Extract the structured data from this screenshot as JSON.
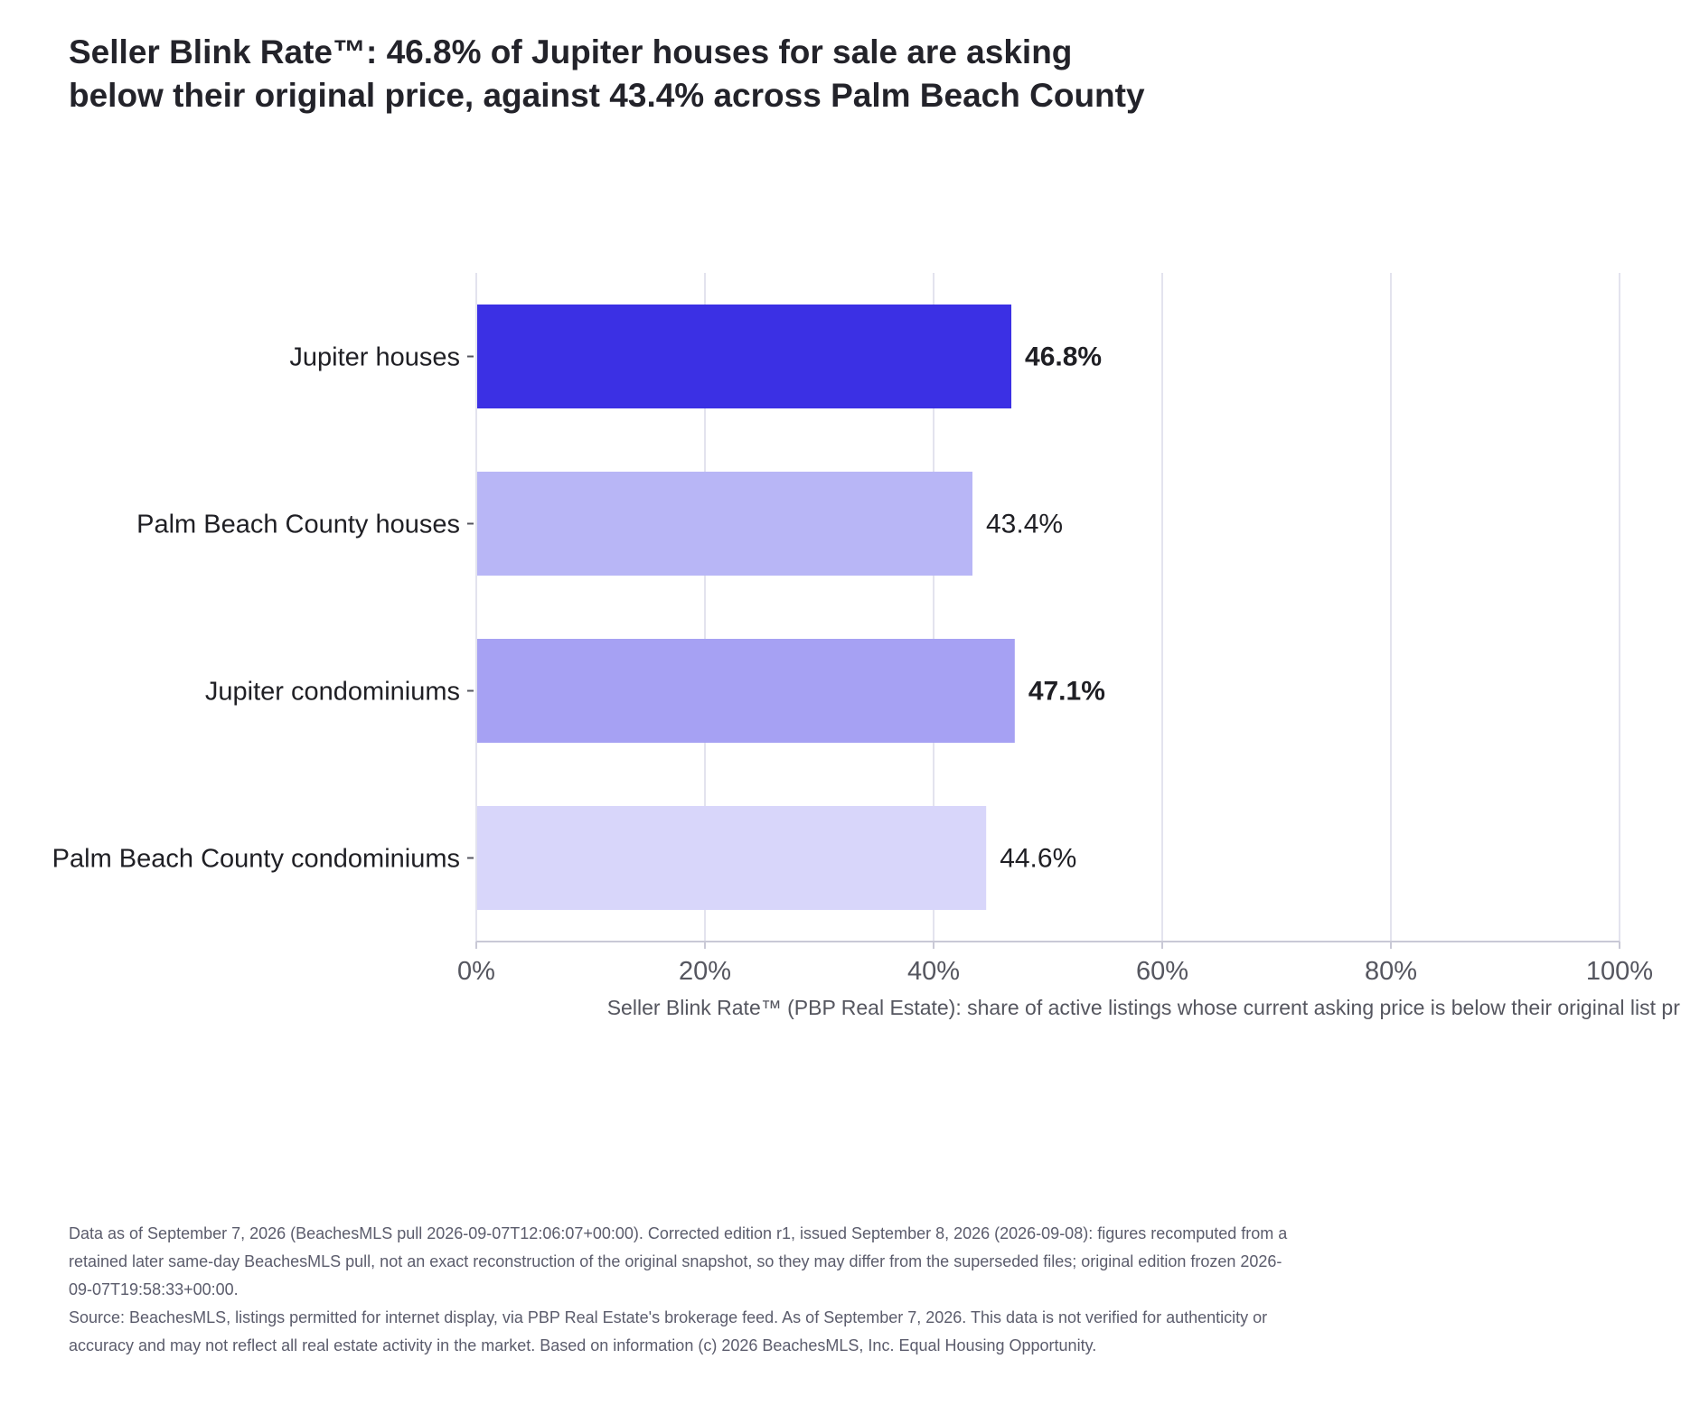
{
  "title_lines": [
    "Seller Blink Rate™: 46.8% of Jupiter houses for sale are asking",
    "below their original price, against 43.4% across Palm Beach County"
  ],
  "chart_data": {
    "type": "bar",
    "orientation": "horizontal",
    "categories": [
      "Jupiter houses",
      "Palm Beach County houses",
      "Jupiter condominiums",
      "Palm Beach County condominiums"
    ],
    "values": [
      46.8,
      43.4,
      47.1,
      44.6
    ],
    "value_labels": [
      "46.8%",
      "43.4%",
      "47.1%",
      "44.6%"
    ],
    "bold_labels": [
      true,
      false,
      true,
      false
    ],
    "bar_colors": [
      "#3b30e4",
      "#b8b6f6",
      "#a6a1f3",
      "#d8d6fa"
    ],
    "xlim": [
      0,
      100
    ],
    "xticks": [
      0,
      20,
      40,
      60,
      80,
      100
    ],
    "xtick_labels": [
      "0%",
      "20%",
      "40%",
      "60%",
      "80%",
      "100%"
    ],
    "xlabel": "Seller Blink Rate™ (PBP Real Estate): share of active listings whose current asking price is below their original list price",
    "grid": "vertical",
    "legend": "none"
  },
  "notes": [
    "Data as of September 7, 2026 (BeachesMLS pull 2026-09-07T12:06:07+00:00). Corrected edition r1, issued September 8, 2026 (2026-09-08): figures recomputed from a retained later same-day BeachesMLS pull, not an exact reconstruction of the original snapshot, so they may differ from the superseded files; original edition frozen 2026-09-07T19:58:33+00:00.",
    "Source: BeachesMLS, listings permitted for internet display, via PBP Real Estate's brokerage feed. As of September 7, 2026. This data is not verified for authenticity or accuracy and may not reflect all real estate activity in the market. Based on information (c) 2026 BeachesMLS, Inc. Equal Housing Opportunity."
  ],
  "colors": {
    "grid": "#e3e3ee",
    "axis": "#c9c9d6",
    "text": "#1f1f24",
    "tick_text": "#55565f",
    "note_text": "#5b5c6c"
  }
}
